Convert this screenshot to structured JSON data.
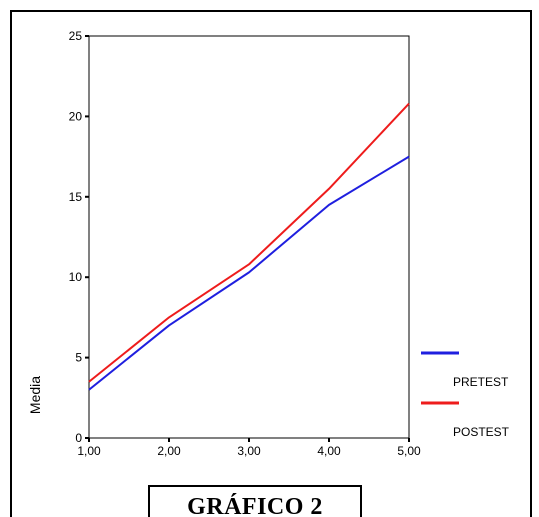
{
  "chart_data": {
    "type": "line",
    "x": [
      1,
      2,
      3,
      4,
      5
    ],
    "x_tick_labels": [
      "1,00",
      "2,00",
      "3,00",
      "4,00",
      "5,00"
    ],
    "y_ticks": [
      0,
      5,
      10,
      15,
      20,
      25
    ],
    "ylim": [
      0,
      25
    ],
    "xlim": [
      1,
      5
    ],
    "ylabel": "Media",
    "xlabel": "",
    "grid": false,
    "legend_position": "right",
    "series": [
      {
        "name": "PRETEST",
        "color": "#1f1fdf",
        "values": [
          3.0,
          7.0,
          10.3,
          14.5,
          17.5
        ]
      },
      {
        "name": "POSTEST",
        "color": "#ee1c1c",
        "values": [
          3.5,
          7.5,
          10.8,
          15.5,
          20.8
        ]
      }
    ]
  },
  "caption": "GRÁFICO 2"
}
